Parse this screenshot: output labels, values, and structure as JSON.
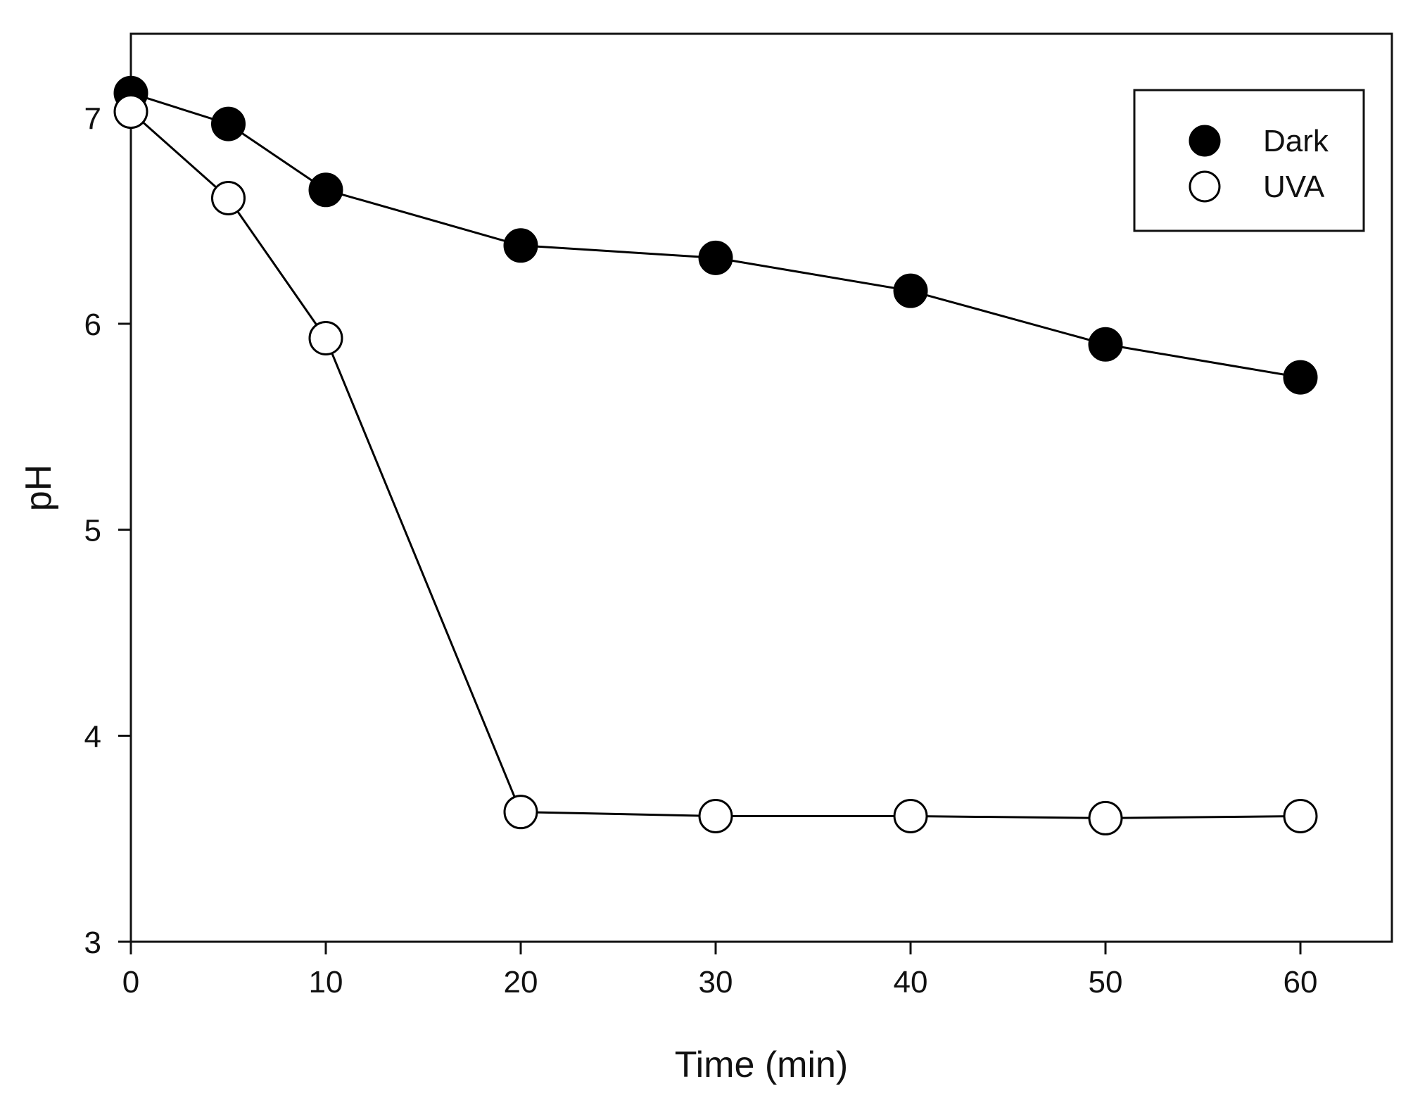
{
  "chart_data": {
    "type": "line",
    "title": "",
    "xlabel": "Time (min)",
    "ylabel": "pH",
    "xlim": [
      0,
      65
    ],
    "ylim": [
      3,
      7.4
    ],
    "xticks": [
      0,
      10,
      20,
      30,
      40,
      50,
      60
    ],
    "yticks": [
      3,
      4,
      5,
      6,
      7
    ],
    "x": [
      0,
      5,
      10,
      20,
      30,
      40,
      50,
      60
    ],
    "legend_position": "top-right",
    "grid": false,
    "series": [
      {
        "name": "Dark",
        "marker": "filled-circle",
        "color": "#000000",
        "values": [
          7.12,
          6.97,
          6.65,
          6.38,
          6.32,
          6.16,
          5.9,
          5.74
        ]
      },
      {
        "name": "UVA",
        "marker": "open-circle",
        "color": "#000000",
        "values": [
          7.03,
          6.61,
          5.93,
          3.63,
          3.61,
          3.61,
          3.6,
          3.61
        ]
      }
    ]
  }
}
